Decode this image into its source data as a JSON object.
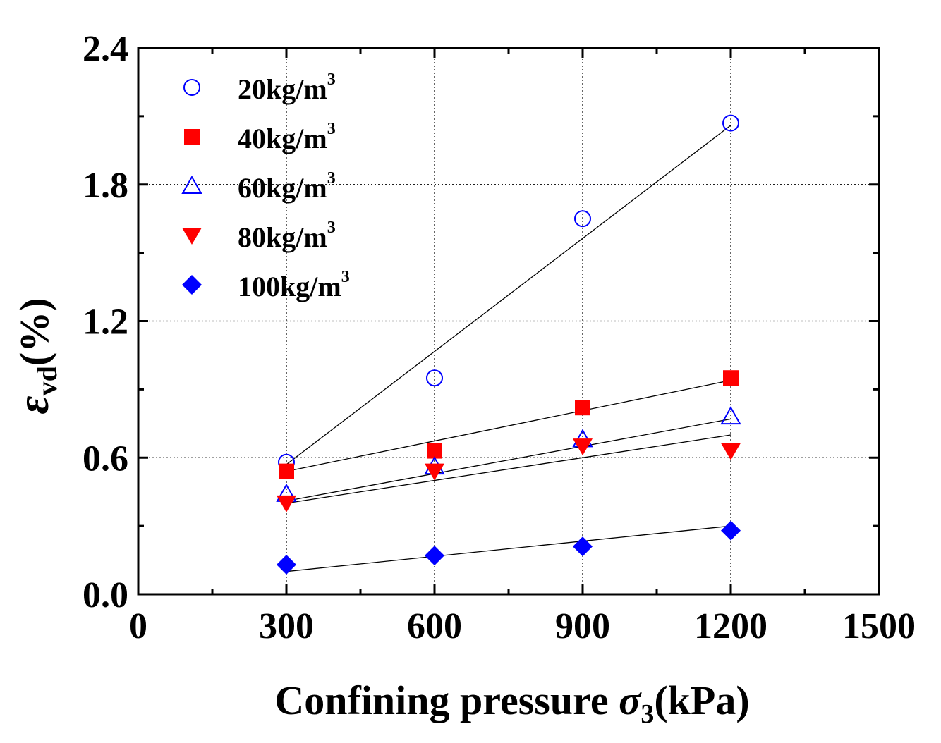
{
  "chart_data": {
    "type": "scatter",
    "title": "",
    "xlabel": {
      "prefix": "Confining pressure ",
      "symbol": "σ",
      "subscript": "3",
      "suffix": "(kPa)"
    },
    "ylabel": {
      "symbol": "ε",
      "subscript": "vd",
      "suffix": "(%)"
    },
    "xlim": [
      0,
      1500
    ],
    "ylim": [
      0.0,
      2.4
    ],
    "xticks": [
      0,
      300,
      600,
      900,
      1200,
      1500
    ],
    "xtick_labels": [
      "0",
      "300",
      "600",
      "900",
      "1200",
      "1500"
    ],
    "yticks": [
      0.0,
      0.6,
      1.2,
      1.8,
      2.4
    ],
    "ytick_labels": [
      "0.0",
      "0.6",
      "1.2",
      "1.8",
      "2.4"
    ],
    "grid": true,
    "legend_position": "top-left",
    "series": [
      {
        "name": "20kg/m",
        "sup": "3",
        "marker": "circle-open",
        "color": "#0000ff",
        "x": [
          300,
          600,
          900,
          1200
        ],
        "y": [
          0.58,
          0.95,
          1.65,
          2.07
        ],
        "fit": [
          [
            300,
            0.57
          ],
          [
            1200,
            2.06
          ]
        ]
      },
      {
        "name": "40kg/m",
        "sup": "3",
        "marker": "square-filled",
        "color": "#ff0000",
        "x": [
          300,
          600,
          900,
          1200
        ],
        "y": [
          0.54,
          0.63,
          0.82,
          0.95
        ],
        "fit": [
          [
            300,
            0.54
          ],
          [
            1200,
            0.94
          ]
        ]
      },
      {
        "name": "60kg/m",
        "sup": "3",
        "marker": "triangle-up-open",
        "color": "#0000ff",
        "x": [
          300,
          600,
          900,
          1200
        ],
        "y": [
          0.44,
          0.56,
          0.68,
          0.78
        ],
        "fit": [
          [
            300,
            0.41
          ],
          [
            1200,
            0.77
          ]
        ]
      },
      {
        "name": "80kg/m",
        "sup": "3",
        "marker": "triangle-down-filled",
        "color": "#ff0000",
        "x": [
          300,
          600,
          900,
          1200
        ],
        "y": [
          0.4,
          0.54,
          0.65,
          0.63
        ],
        "fit": [
          [
            300,
            0.4
          ],
          [
            1200,
            0.7
          ]
        ]
      },
      {
        "name": "100kg/m",
        "sup": "3",
        "marker": "diamond-filled",
        "color": "#0000ff",
        "x": [
          300,
          600,
          900,
          1200
        ],
        "y": [
          0.13,
          0.17,
          0.21,
          0.28
        ],
        "fit": [
          [
            300,
            0.1
          ],
          [
            1200,
            0.3
          ]
        ]
      }
    ]
  }
}
